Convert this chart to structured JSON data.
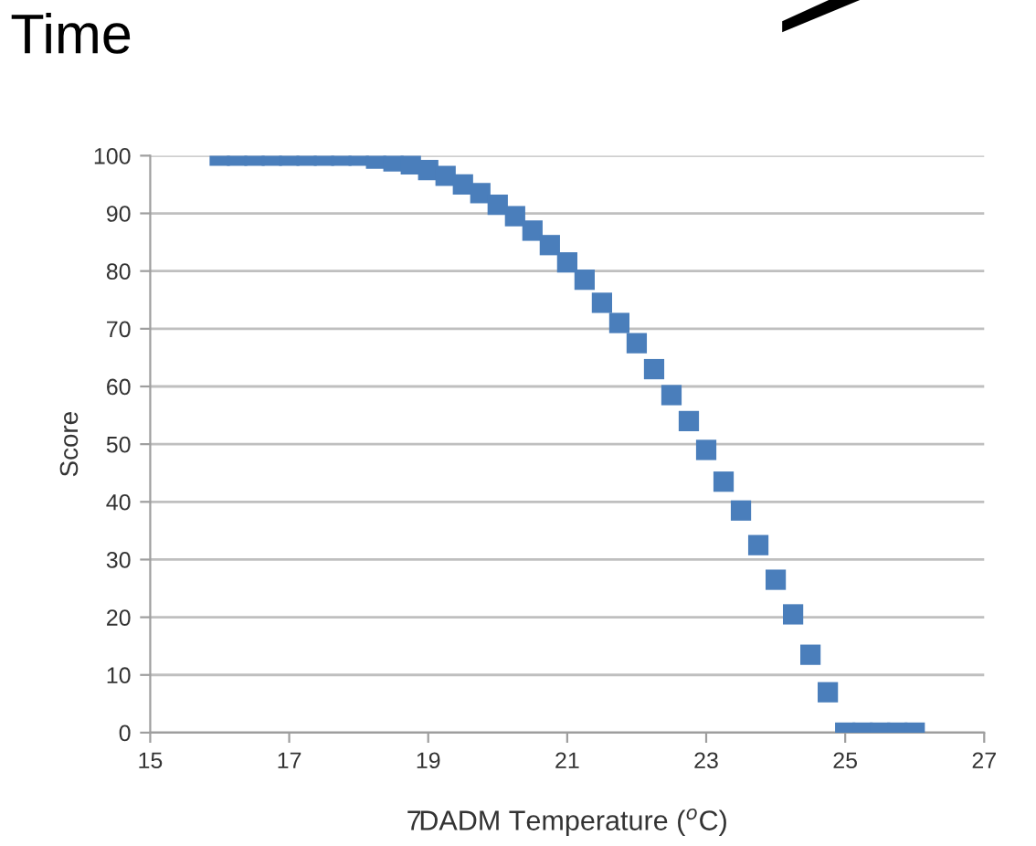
{
  "chart_data": {
    "type": "scatter",
    "title": "Time",
    "xlabel": "7DADM Temperature ($^{o}$C)",
    "ylabel": "Score",
    "x": [
      16,
      16.25,
      16.5,
      16.75,
      17,
      17.25,
      17.5,
      17.75,
      18,
      18.25,
      18.5,
      18.75,
      19,
      19.25,
      19.5,
      19.75,
      20,
      20.25,
      20.5,
      20.75,
      21,
      21.25,
      21.5,
      21.75,
      22,
      22.25,
      22.5,
      22.75,
      23,
      23.25,
      23.5,
      23.75,
      24,
      24.25,
      24.5,
      24.75,
      25,
      25.25,
      25.5,
      25.75,
      26
    ],
    "series": [
      {
        "color": "#4a7ebb",
        "values": [
          100,
          100,
          100,
          100,
          100,
          100,
          100,
          100,
          100,
          99.5,
          99,
          98.5,
          97.5,
          96.5,
          95,
          93.5,
          91.5,
          89.5,
          87,
          84.5,
          81.5,
          78.5,
          74.5,
          71,
          67.5,
          63,
          58.5,
          54,
          49,
          43.5,
          38.5,
          32.5,
          26.5,
          20.5,
          13.5,
          7,
          0,
          0,
          0,
          0,
          0
        ]
      }
    ],
    "xlim": [
      15,
      27
    ],
    "xticks": [
      15,
      17,
      19,
      21,
      23,
      25,
      27
    ],
    "ylim": [
      0,
      100
    ],
    "yticks": [
      0,
      10,
      20,
      30,
      40,
      50,
      60,
      70,
      80,
      90,
      100
    ],
    "grid": "y",
    "marker": "square"
  }
}
